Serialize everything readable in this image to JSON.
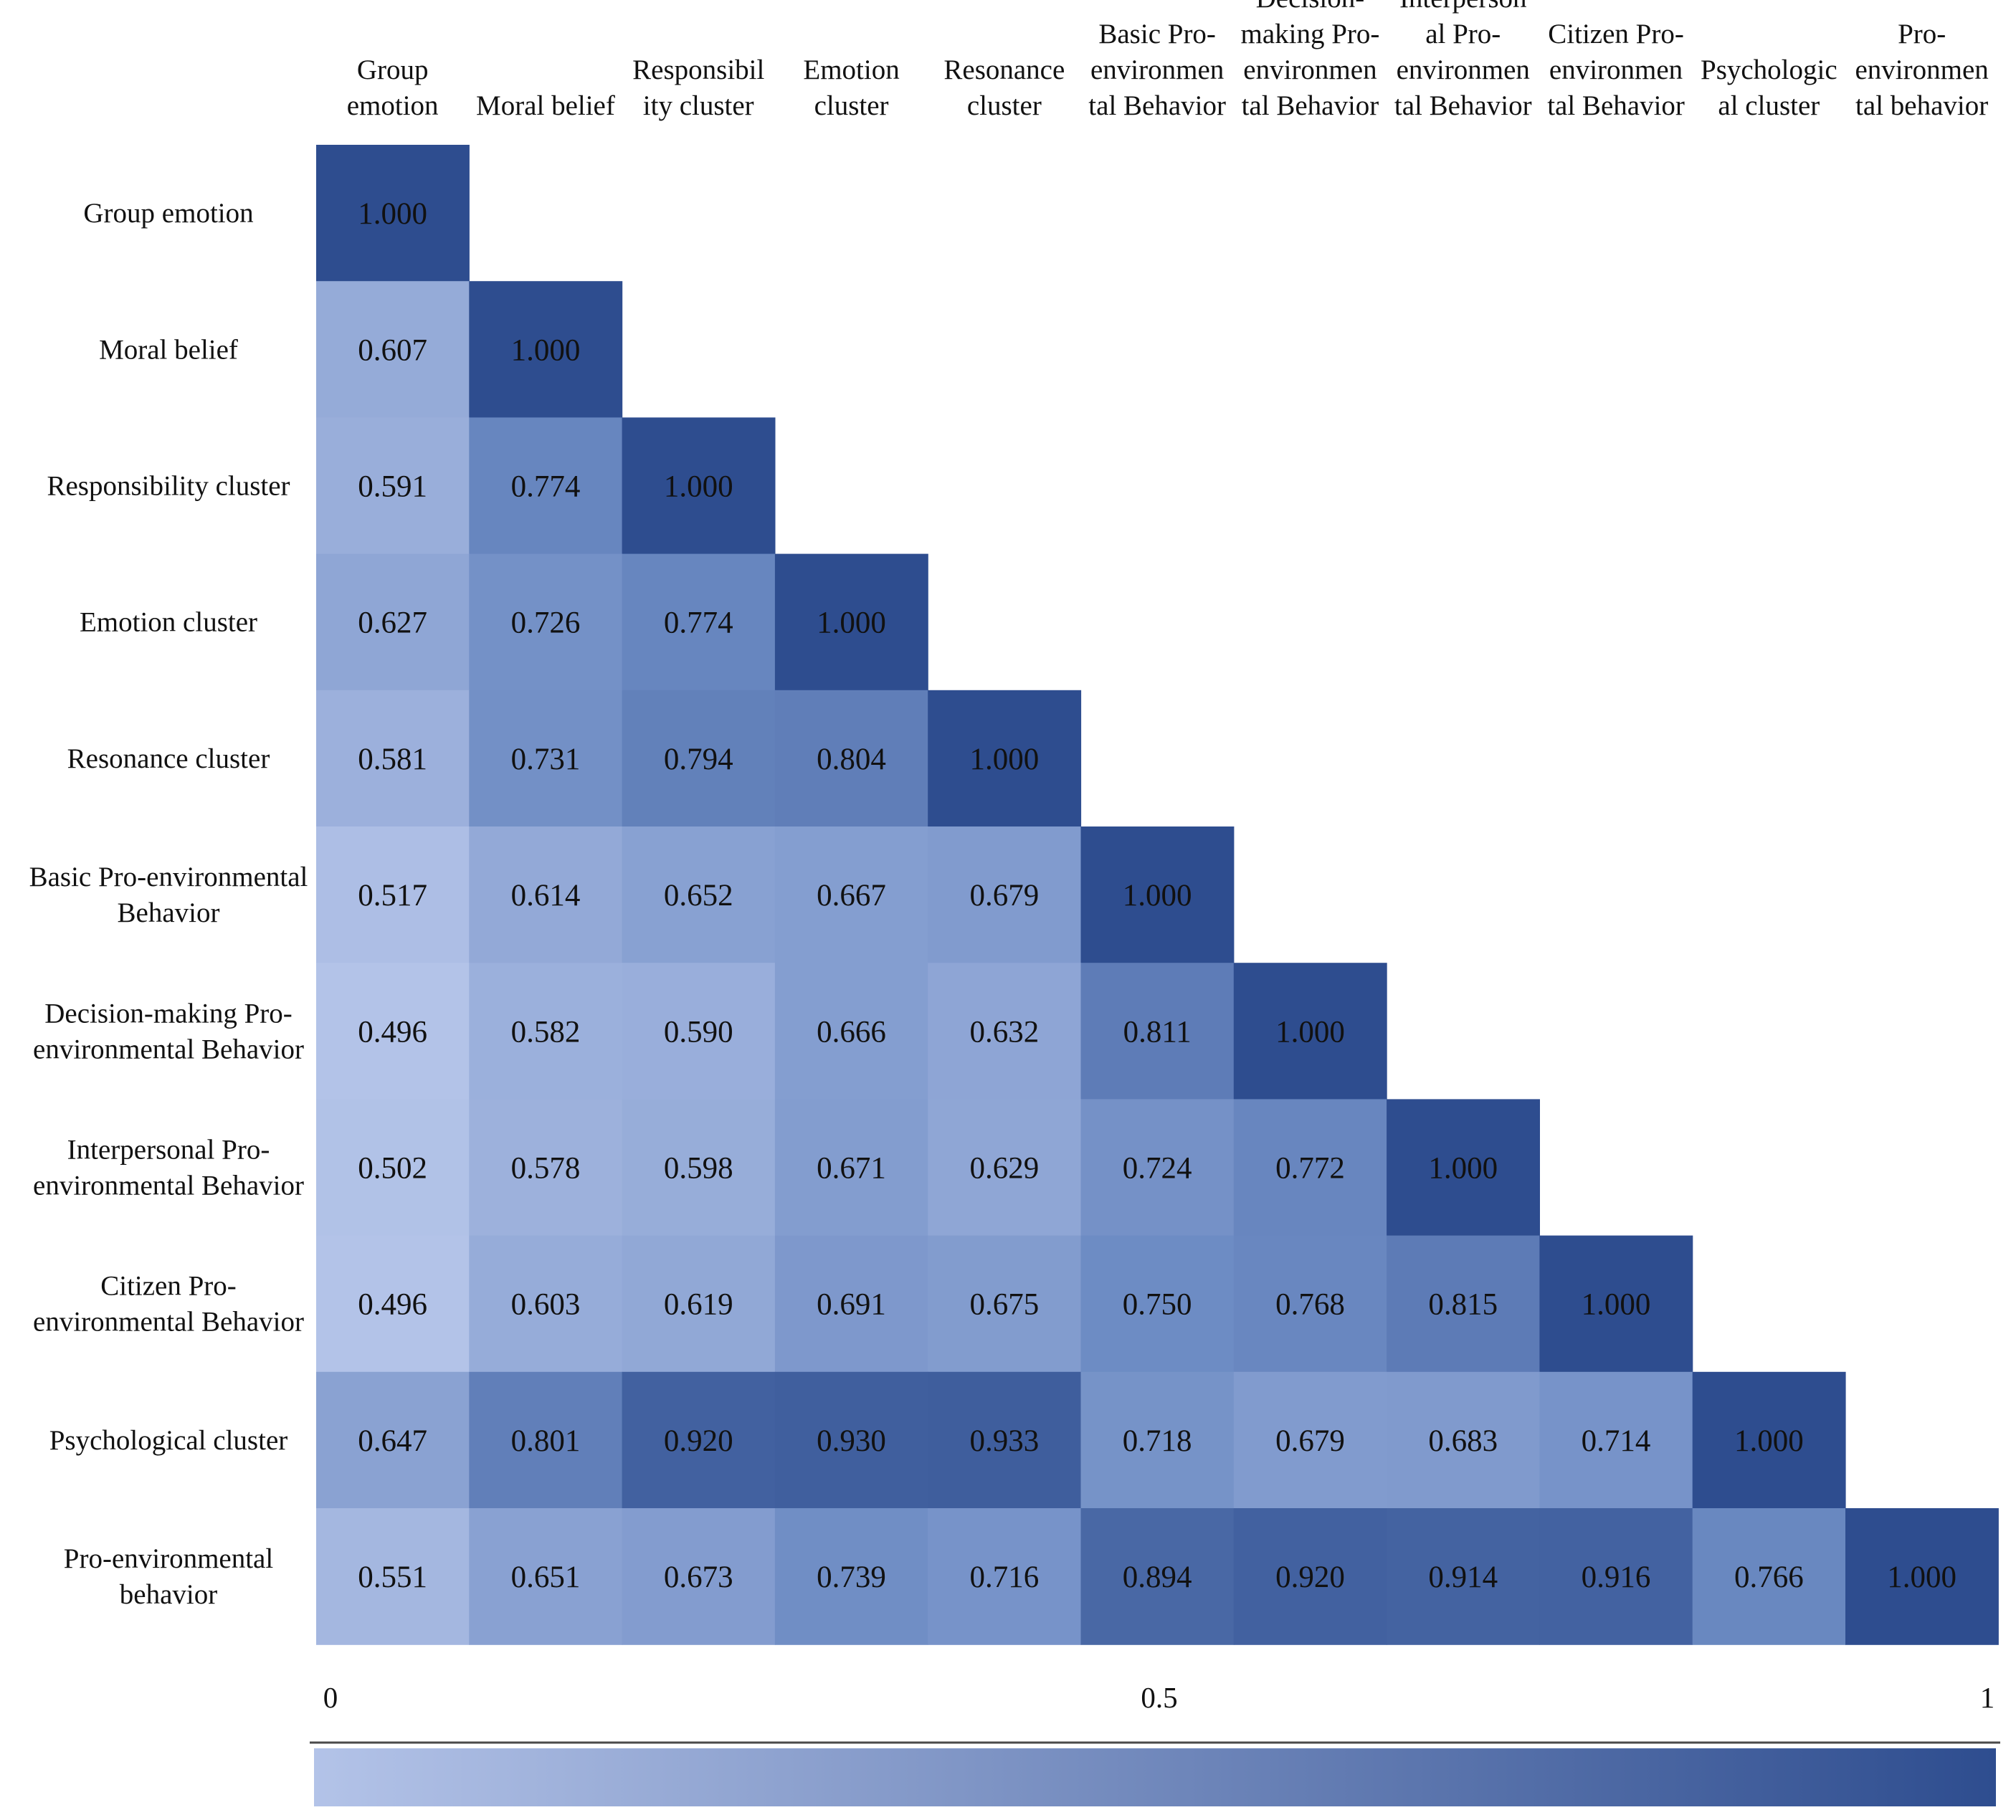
{
  "chart_data": {
    "type": "heatmap",
    "title": "",
    "layout": "lower-triangle",
    "variables": [
      "Group emotion",
      "Moral belief",
      "Responsibility cluster",
      "Emotion cluster",
      "Resonance cluster",
      "Basic Pro-environmental Behavior",
      "Decision-making Pro-environmental Behavior",
      "Interpersonal Pro-environmental Behavior",
      "Citizen Pro-environmental Behavior",
      "Psychological cluster",
      "Pro-environmental behavior"
    ],
    "column_labels": [
      [
        "Group",
        "emotion"
      ],
      [
        "Moral belief"
      ],
      [
        "Responsibil",
        "ity cluster"
      ],
      [
        "Emotion",
        "cluster"
      ],
      [
        "Resonance",
        "cluster"
      ],
      [
        "Basic Pro-",
        "environmen",
        "tal Behavior"
      ],
      [
        "Decision-",
        "making Pro-",
        "environmen",
        "tal Behavior"
      ],
      [
        "Interperson",
        "al Pro-",
        "environmen",
        "tal Behavior"
      ],
      [
        "Citizen Pro-",
        "environmen",
        "tal Behavior"
      ],
      [
        "Psychologic",
        "al cluster"
      ],
      [
        "Pro-",
        "environmen",
        "tal behavior"
      ]
    ],
    "row_labels": [
      [
        "Group emotion"
      ],
      [
        "Moral belief"
      ],
      [
        "Responsibility cluster"
      ],
      [
        "Emotion cluster"
      ],
      [
        "Resonance cluster"
      ],
      [
        "Basic Pro-environmental",
        "Behavior"
      ],
      [
        "Decision-making Pro-",
        "environmental Behavior"
      ],
      [
        "Interpersonal Pro-",
        "environmental Behavior"
      ],
      [
        "Citizen Pro-",
        "environmental Behavior"
      ],
      [
        "Psychological cluster"
      ],
      [
        "Pro-environmental",
        "behavior"
      ]
    ],
    "values": [
      [
        "1.000"
      ],
      [
        "0.607",
        "1.000"
      ],
      [
        "0.591",
        "0.774",
        "1.000"
      ],
      [
        "0.627",
        "0.726",
        "0.774",
        "1.000"
      ],
      [
        "0.581",
        "0.731",
        "0.794",
        "0.804",
        "1.000"
      ],
      [
        "0.517",
        "0.614",
        "0.652",
        "0.667",
        "0.679",
        "1.000"
      ],
      [
        "0.496",
        "0.582",
        "0.590",
        "0.666",
        "0.632",
        "0.811",
        "1.000"
      ],
      [
        "0.502",
        "0.578",
        "0.598",
        "0.671",
        "0.629",
        "0.724",
        "0.772",
        "1.000"
      ],
      [
        "0.496",
        "0.603",
        "0.619",
        "0.691",
        "0.675",
        "0.750",
        "0.768",
        "0.815",
        "1.000"
      ],
      [
        "0.647",
        "0.801",
        "0.920",
        "0.930",
        "0.933",
        "0.718",
        "0.679",
        "0.683",
        "0.714",
        "1.000"
      ],
      [
        "0.551",
        "0.651",
        "0.673",
        "0.739",
        "0.716",
        "0.894",
        "0.920",
        "0.914",
        "0.916",
        "0.766",
        "1.000"
      ]
    ],
    "colorbar": {
      "range": [
        0,
        1
      ],
      "ticks": [
        "0",
        "0.5",
        "1"
      ],
      "color_low": "#b3c3e8",
      "color_high": "#2e4d8f"
    },
    "color_scale": {
      "value_min": 0.496,
      "value_max": 1.0,
      "color_min": "#b3c3e8",
      "color_mid": "#6e8cc4",
      "color_max": "#2e4d8f"
    }
  }
}
